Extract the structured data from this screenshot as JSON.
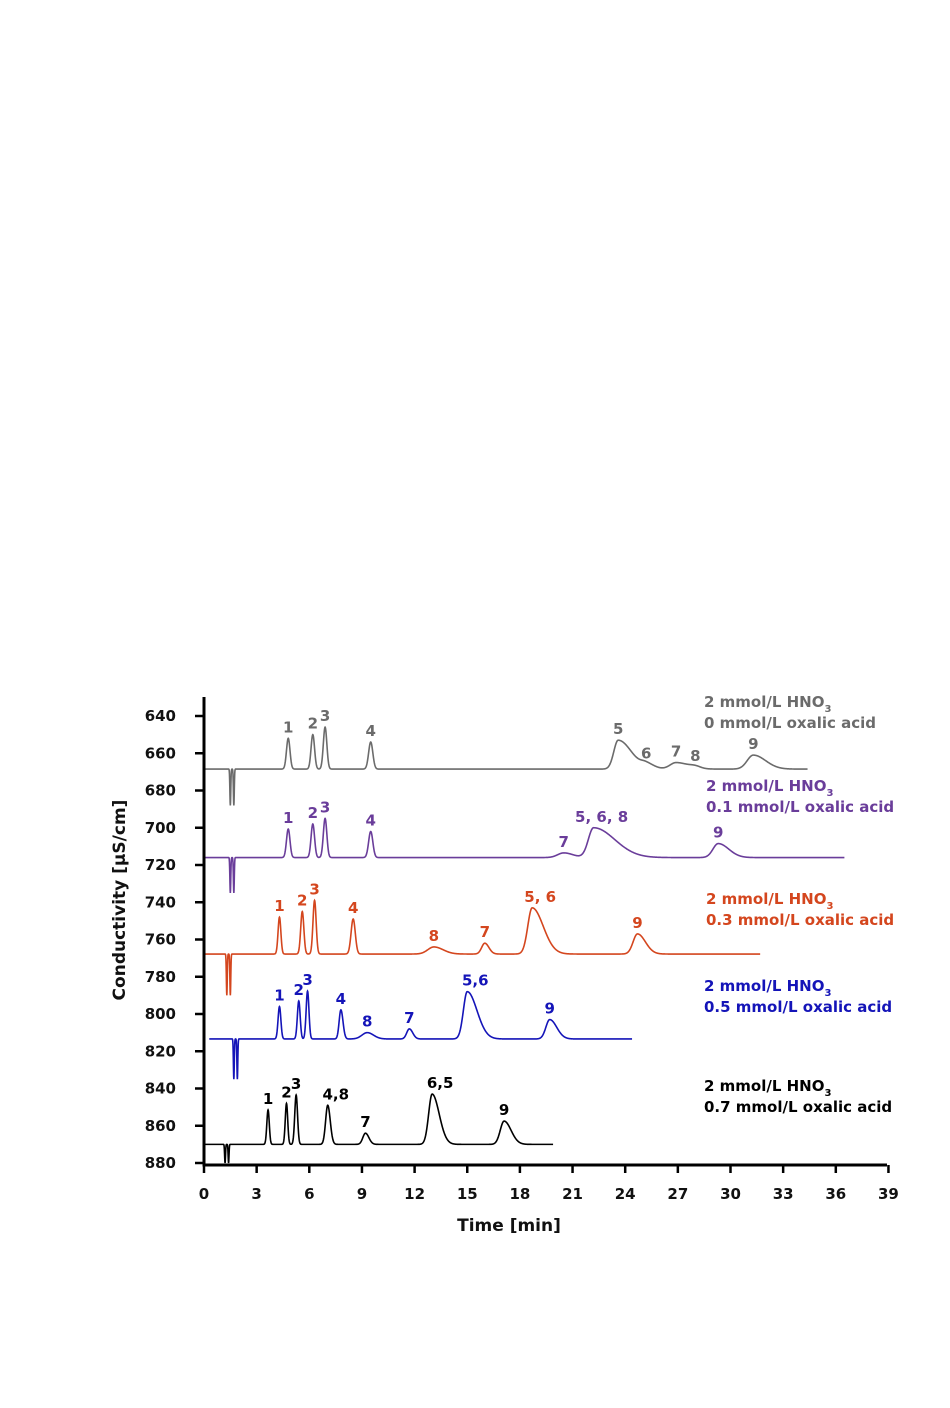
{
  "chart_data": {
    "type": "line",
    "title": "",
    "xlabel": "Time [min]",
    "ylabel": "Conductivity [µS/cm]",
    "xlim": [
      0,
      39
    ],
    "ylim": [
      880,
      640
    ],
    "x_ticks": [
      "0",
      "3",
      "6",
      "9",
      "12",
      "15",
      "18",
      "21",
      "24",
      "27",
      "30",
      "33",
      "36",
      "39"
    ],
    "y_ticks": [
      "640",
      "660",
      "680",
      "700",
      "720",
      "740",
      "760",
      "780",
      "800",
      "820",
      "840",
      "860",
      "880"
    ],
    "grid": false,
    "series": [
      {
        "name": "2 mmol/L HNO3 / 0 mmol/L oxalic acid",
        "legend_line1": "2 mmol/L HNO",
        "legend_sub": "3",
        "legend_line2": "0 mmol/L oxalic acid",
        "color": "#6b6b6b",
        "baseline": 668.5,
        "t_start": 0,
        "t_end": 34.4,
        "dip_time": 1.5,
        "dip_value": 688,
        "peaks": [
          {
            "label": "1",
            "t": 4.8,
            "top": 652,
            "sigma": 0.1,
            "tail": 1
          },
          {
            "label": "2",
            "t": 6.2,
            "top": 650,
            "sigma": 0.1,
            "tail": 1
          },
          {
            "label": "3",
            "t": 6.9,
            "top": 646,
            "sigma": 0.1,
            "tail": 1
          },
          {
            "label": "4",
            "t": 9.5,
            "top": 654,
            "sigma": 0.12,
            "tail": 1
          },
          {
            "label": "5",
            "t": 23.6,
            "top": 653,
            "sigma": 0.25,
            "tail": 3
          },
          {
            "label": "6",
            "t": 25.2,
            "top": 666,
            "sigma": 0.3,
            "tail": 1.5
          },
          {
            "label": "7",
            "t": 26.9,
            "top": 665,
            "sigma": 0.35,
            "tail": 2
          },
          {
            "label": "8",
            "t": 28.0,
            "top": 667.5,
            "sigma": 0.3,
            "tail": 1
          },
          {
            "label": "9",
            "t": 31.3,
            "top": 661,
            "sigma": 0.35,
            "tail": 2
          }
        ]
      },
      {
        "name": "2 mmol/L HNO3 / 0.1 mmol/L oxalic acid",
        "legend_line1": "2 mmol/L HNO",
        "legend_sub": "3",
        "legend_line2": "0.1 mmol/L oxalic acid",
        "color": "#6a3d9a",
        "baseline": 716,
        "t_start": 0,
        "t_end": 36.5,
        "dip_time": 1.5,
        "dip_value": 735,
        "peaks": [
          {
            "label": "1",
            "t": 4.8,
            "top": 700.7,
            "sigma": 0.1,
            "tail": 1
          },
          {
            "label": "2",
            "t": 6.2,
            "top": 698,
            "sigma": 0.1,
            "tail": 1
          },
          {
            "label": "3",
            "t": 6.9,
            "top": 695,
            "sigma": 0.1,
            "tail": 1
          },
          {
            "label": "4",
            "t": 9.5,
            "top": 702,
            "sigma": 0.12,
            "tail": 1
          },
          {
            "label": "7",
            "t": 20.5,
            "top": 713.5,
            "sigma": 0.35,
            "tail": 1.5
          },
          {
            "label": "5, 6, 8",
            "t": 22.2,
            "top": 700,
            "sigma": 0.3,
            "tail": 4
          },
          {
            "label": "9",
            "t": 29.3,
            "top": 708.5,
            "sigma": 0.3,
            "tail": 2
          }
        ]
      },
      {
        "name": "2 mmol/L HNO3 / 0.3 mmol/L oxalic acid",
        "legend_line1": "2 mmol/L HNO",
        "legend_sub": "3",
        "legend_line2": "0.3 mmol/L oxalic acid",
        "color": "#d4461e",
        "baseline": 767.8,
        "t_start": 0,
        "t_end": 31.7,
        "dip_time": 1.3,
        "dip_value": 790,
        "peaks": [
          {
            "label": "1",
            "t": 4.3,
            "top": 748,
            "sigma": 0.08,
            "tail": 1
          },
          {
            "label": "2",
            "t": 5.6,
            "top": 745,
            "sigma": 0.09,
            "tail": 1
          },
          {
            "label": "3",
            "t": 6.3,
            "top": 739,
            "sigma": 0.09,
            "tail": 1
          },
          {
            "label": "4",
            "t": 8.5,
            "top": 749,
            "sigma": 0.12,
            "tail": 1
          },
          {
            "label": "8",
            "t": 13.1,
            "top": 764,
            "sigma": 0.35,
            "tail": 1.5
          },
          {
            "label": "7",
            "t": 16.0,
            "top": 762,
            "sigma": 0.18,
            "tail": 1.3
          },
          {
            "label": "5, 6",
            "t": 18.7,
            "top": 743,
            "sigma": 0.25,
            "tail": 2.5
          },
          {
            "label": "9",
            "t": 24.7,
            "top": 757,
            "sigma": 0.25,
            "tail": 1.8
          }
        ]
      },
      {
        "name": "2 mmol/L HNO3 / 0.5 mmol/L oxalic acid",
        "legend_line1": "2 mmol/L HNO",
        "legend_sub": "3",
        "legend_line2": "0.5 mmol/L oxalic acid",
        "color": "#1414b8",
        "baseline": 813.4,
        "t_start": 0.3,
        "t_end": 24.4,
        "dip_time": 1.7,
        "dip_value": 835,
        "peaks": [
          {
            "label": "1",
            "t": 4.3,
            "top": 796,
            "sigma": 0.08,
            "tail": 1
          },
          {
            "label": "2",
            "t": 5.4,
            "top": 793,
            "sigma": 0.08,
            "tail": 1
          },
          {
            "label": "3",
            "t": 5.9,
            "top": 787.7,
            "sigma": 0.08,
            "tail": 1
          },
          {
            "label": "4",
            "t": 7.8,
            "top": 797.8,
            "sigma": 0.1,
            "tail": 1.2
          },
          {
            "label": "8",
            "t": 9.3,
            "top": 810,
            "sigma": 0.3,
            "tail": 1.2
          },
          {
            "label": "7",
            "t": 11.7,
            "top": 808,
            "sigma": 0.15,
            "tail": 1.3
          },
          {
            "label": "5,6",
            "t": 15.0,
            "top": 788,
            "sigma": 0.22,
            "tail": 2.5
          },
          {
            "label": "9",
            "t": 19.7,
            "top": 803,
            "sigma": 0.22,
            "tail": 1.8
          }
        ]
      },
      {
        "name": "2 mmol/L HNO3 / 0.7 mmol/L oxalic acid",
        "legend_line1": "2 mmol/L HNO",
        "legend_sub": "3",
        "legend_line2": "0.7 mmol/L oxalic acid",
        "color": "#000000",
        "baseline": 870,
        "t_start": 0,
        "t_end": 19.9,
        "dip_time": 1.2,
        "dip_value": 880,
        "peaks": [
          {
            "label": "1",
            "t": 3.65,
            "top": 851.5,
            "sigma": 0.07,
            "tail": 1
          },
          {
            "label": "2",
            "t": 4.7,
            "top": 848,
            "sigma": 0.07,
            "tail": 1
          },
          {
            "label": "3",
            "t": 5.25,
            "top": 843.5,
            "sigma": 0.08,
            "tail": 1
          },
          {
            "label": "4,8",
            "t": 7.05,
            "top": 849,
            "sigma": 0.12,
            "tail": 1.2
          },
          {
            "label": "7",
            "t": 9.2,
            "top": 864,
            "sigma": 0.15,
            "tail": 1.3
          },
          {
            "label": "6,5",
            "t": 13.0,
            "top": 843,
            "sigma": 0.2,
            "tail": 2
          },
          {
            "label": "9",
            "t": 17.1,
            "top": 857.5,
            "sigma": 0.22,
            "tail": 1.8
          }
        ]
      }
    ]
  }
}
